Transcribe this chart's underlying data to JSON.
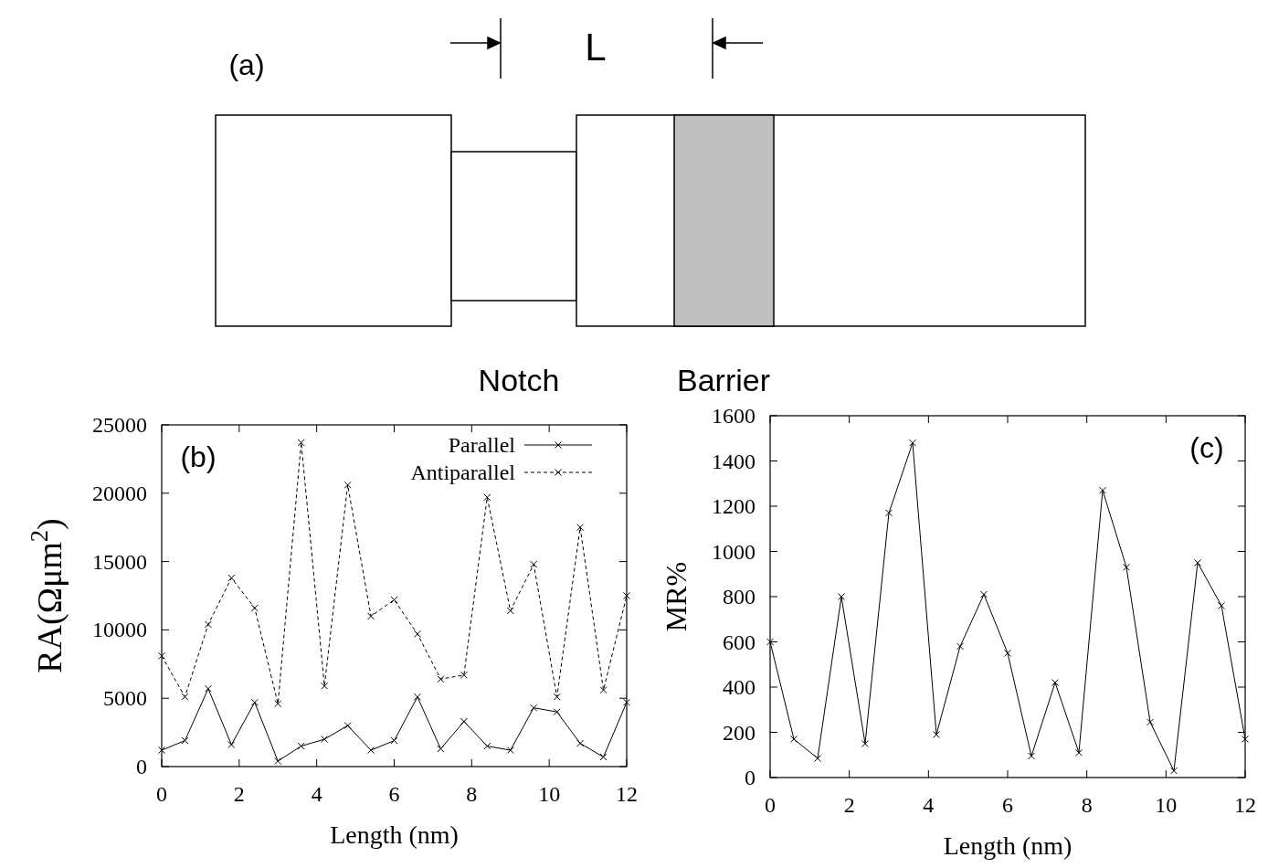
{
  "chart_data": [
    {
      "type": "other",
      "title": "(a)",
      "annotations": [
        "L",
        "Notch",
        "Barrier"
      ]
    },
    {
      "type": "line",
      "title": "(b)",
      "xlabel": "Length (nm)",
      "ylabel": "RA(Ωμm$^{2}$)",
      "x": [
        0,
        0.6,
        1.2,
        1.8,
        2.4,
        3,
        3.6,
        4.2,
        4.8,
        5.4,
        6,
        6.6,
        7.2,
        7.8,
        8.4,
        9,
        9.6,
        10.2,
        10.8,
        11.4,
        12
      ],
      "xlim": [
        0,
        12
      ],
      "xticks": [
        0,
        2,
        4,
        6,
        8,
        10,
        12
      ],
      "ylim": [
        0,
        25000
      ],
      "yticks": [
        0,
        5000,
        10000,
        15000,
        20000,
        25000
      ],
      "legend": "top right",
      "marker": "cross",
      "series": [
        {
          "name": "Parallel",
          "color": "#000000",
          "line_style": "solid",
          "values": [
            1200,
            1900,
            5700,
            1600,
            4700,
            400,
            1500,
            2000,
            3000,
            1200,
            1900,
            5100,
            1300,
            3300,
            1500,
            1200,
            4300,
            4000,
            1700,
            700,
            4700
          ]
        },
        {
          "name": "Antiparallel",
          "color": "#000000",
          "line_style": "dashed",
          "values": [
            8100,
            5100,
            10400,
            13800,
            11600,
            4600,
            23700,
            5900,
            20600,
            11000,
            12200,
            9700,
            6400,
            6700,
            19700,
            11400,
            14800,
            5100,
            17500,
            5600,
            12500
          ]
        }
      ]
    },
    {
      "type": "line",
      "title": "(c)",
      "xlabel": "Length (nm)",
      "ylabel": "MR%",
      "x": [
        0,
        0.6,
        1.2,
        1.8,
        2.4,
        3,
        3.6,
        4.2,
        4.8,
        5.4,
        6,
        6.6,
        7.2,
        7.8,
        8.4,
        9,
        9.6,
        10.2,
        10.8,
        11.4,
        12
      ],
      "xlim": [
        0,
        12
      ],
      "xticks": [
        0,
        2,
        4,
        6,
        8,
        10,
        12
      ],
      "ylim": [
        0,
        1600
      ],
      "yticks": [
        0,
        200,
        400,
        600,
        800,
        1000,
        1200,
        1400,
        1600
      ],
      "marker": "cross",
      "series": [
        {
          "color": "#000000",
          "line_style": "solid",
          "values": [
            600,
            170,
            85,
            800,
            150,
            1170,
            1480,
            190,
            580,
            810,
            550,
            95,
            420,
            110,
            1270,
            930,
            245,
            30,
            950,
            760,
            170
          ]
        }
      ]
    }
  ]
}
